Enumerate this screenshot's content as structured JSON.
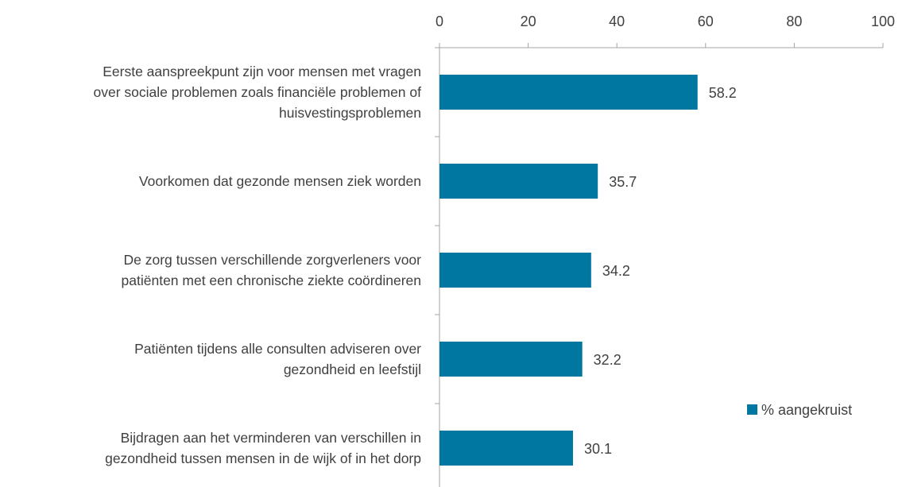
{
  "chart_data": {
    "type": "bar",
    "orientation": "horizontal",
    "categories": [
      "Eerste aanspreekpunt zijn voor mensen met vragen\nover sociale problemen zoals financiële problemen of\nhuisvestingsproblemen",
      "Voorkomen dat gezonde mensen ziek worden",
      "De zorg tussen verschillende zorgverleners voor\npatiënten met een chronische ziekte coördineren",
      "Patiënten tijdens alle consulten adviseren over\ngezondheid en leefstijl",
      "Bijdragen aan het verminderen van verschillen in\ngezondheid tussen mensen in de wijk of in het dorp"
    ],
    "series": [
      {
        "name": "% aangekruist",
        "color": "#0077a0",
        "values": [
          58.2,
          35.7,
          34.2,
          32.2,
          30.1
        ]
      }
    ],
    "xlim": [
      0,
      100
    ],
    "xticks": [
      0,
      20,
      40,
      60,
      80,
      100
    ],
    "legend": "right",
    "grid": false
  }
}
